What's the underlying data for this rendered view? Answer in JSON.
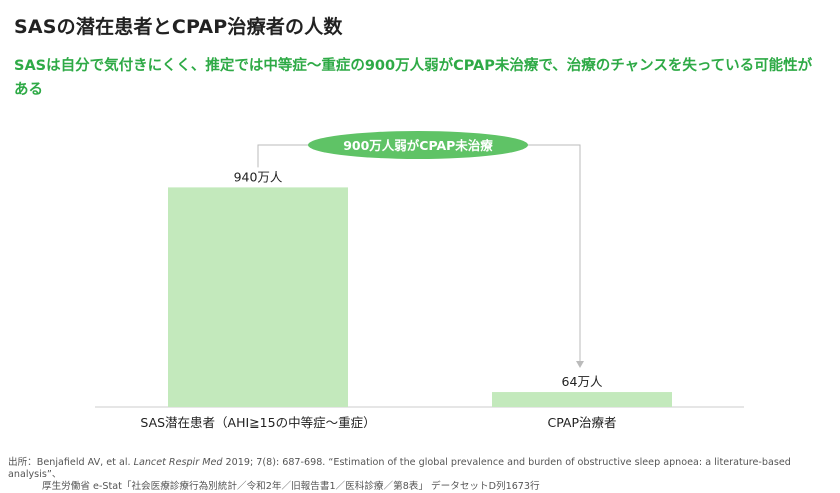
{
  "header": {
    "title": "SASの潜在患者とCPAP治療者の人数",
    "subtitle": "SASは自分で気付きにくく、推定では中等症～重症の900万人弱がCPAP未治療で、治療のチャンスを失っている可能性がある"
  },
  "chart_data": {
    "type": "bar",
    "categories": [
      "SAS潜在患者（AHI≧15の中等症～重症）",
      "CPAP治療者"
    ],
    "values": [
      940,
      64
    ],
    "data_labels": [
      "940万人",
      "64万人"
    ],
    "ylim": [
      0,
      1100
    ],
    "unit": "万人",
    "grid": false,
    "annotation": "900万人弱がCPAP未治療",
    "colors": {
      "bar": "#c3e9bc",
      "annotation_fill": "#5fc366",
      "annotation_text": "#ffffff",
      "bracket": "#bbbbbb",
      "baseline": "#cccccc"
    }
  },
  "footer": {
    "source_prefix": "出所：Benjafield AV, et al. ",
    "source_journal": "Lancet Respir Med",
    "source_rest": " 2019; 7(8): 687-698. “Estimation of the global prevalence and burden of obstructive sleep apnoea: a literature-based analysis”、",
    "source_line2": "厚生労働省 e-Stat「社会医療診療行為別統計／令和2年／旧報告書1／医科診療／第8表」 データセットD列1673行"
  }
}
